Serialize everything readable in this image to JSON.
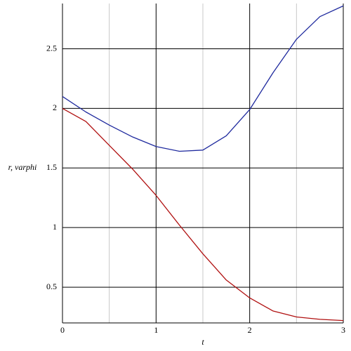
{
  "chart_data": {
    "type": "line",
    "xlabel": "t",
    "ylabel": "r, varphi",
    "x": [
      0,
      0.25,
      0.5,
      0.75,
      1,
      1.25,
      1.5,
      1.75,
      2,
      2.25,
      2.5,
      2.75,
      3
    ],
    "series": [
      {
        "color": "#1f2a9e",
        "values": [
          2.1,
          1.97,
          1.86,
          1.76,
          1.68,
          1.64,
          1.65,
          1.77,
          1.99,
          2.3,
          2.58,
          2.77,
          2.86
        ]
      },
      {
        "color": "#b01010",
        "values": [
          2.0,
          1.89,
          1.69,
          1.49,
          1.27,
          1.02,
          0.78,
          0.56,
          0.41,
          0.3,
          0.25,
          0.23,
          0.22
        ]
      }
    ],
    "xlim": [
      0,
      3
    ],
    "ylim": [
      0.2,
      2.88
    ],
    "xticks": [
      0,
      1,
      2,
      3
    ],
    "yticks": [
      0.5,
      1,
      1.5,
      2,
      2.5
    ],
    "xminor": [
      0.5,
      1.5,
      2.5
    ],
    "grid": true
  }
}
